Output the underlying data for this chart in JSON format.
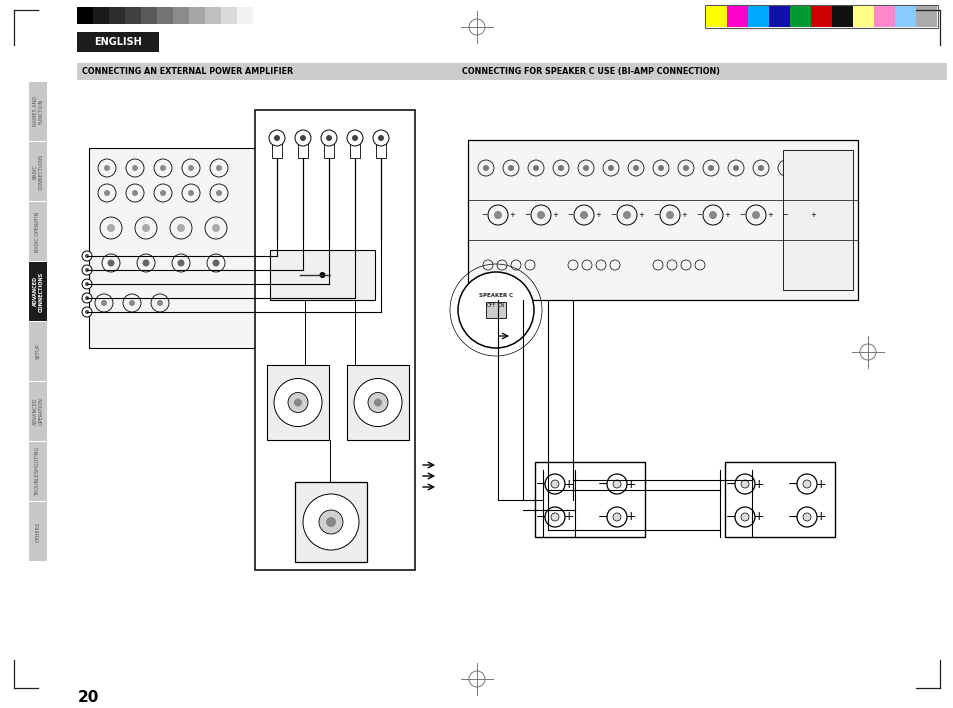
{
  "page_bg": "#ffffff",
  "page_number": "20",
  "title_left": "CONNECTING AN EXTERNAL POWER AMPLIFIER",
  "title_right": "CONNECTING FOR SPEAKER C USE (BI-AMP CONNECTION)",
  "title_bg": "#cccccc",
  "title_text_color": "#000000",
  "english_label": "ENGLISH",
  "english_bg": "#1c1c1c",
  "english_text_color": "#ffffff",
  "sidebar_items": [
    "NAMES AND\nFUNCTION",
    "BASIC\nCONNECTIONS",
    "BASIC OPERATIN",
    "ADVANCED\nCONNECTIONS",
    "SETUP",
    "ADVANCED\nOPERATION",
    "TROUBLESHOOTING",
    "OTHERS"
  ],
  "grayscale_colors": [
    "#000000",
    "#1a1a1a",
    "#2d2d2d",
    "#404040",
    "#595959",
    "#737373",
    "#8c8c8c",
    "#a6a6a6",
    "#bfbfbf",
    "#d9d9d9",
    "#f2f2f2"
  ],
  "color_swatches": [
    "#ffff00",
    "#ff00cc",
    "#00aaff",
    "#1111aa",
    "#009933",
    "#cc0000",
    "#111111",
    "#ffff88",
    "#ff88cc",
    "#88ccff",
    "#aaaaaa"
  ],
  "lc": "#000000",
  "lc_light": "#888888"
}
